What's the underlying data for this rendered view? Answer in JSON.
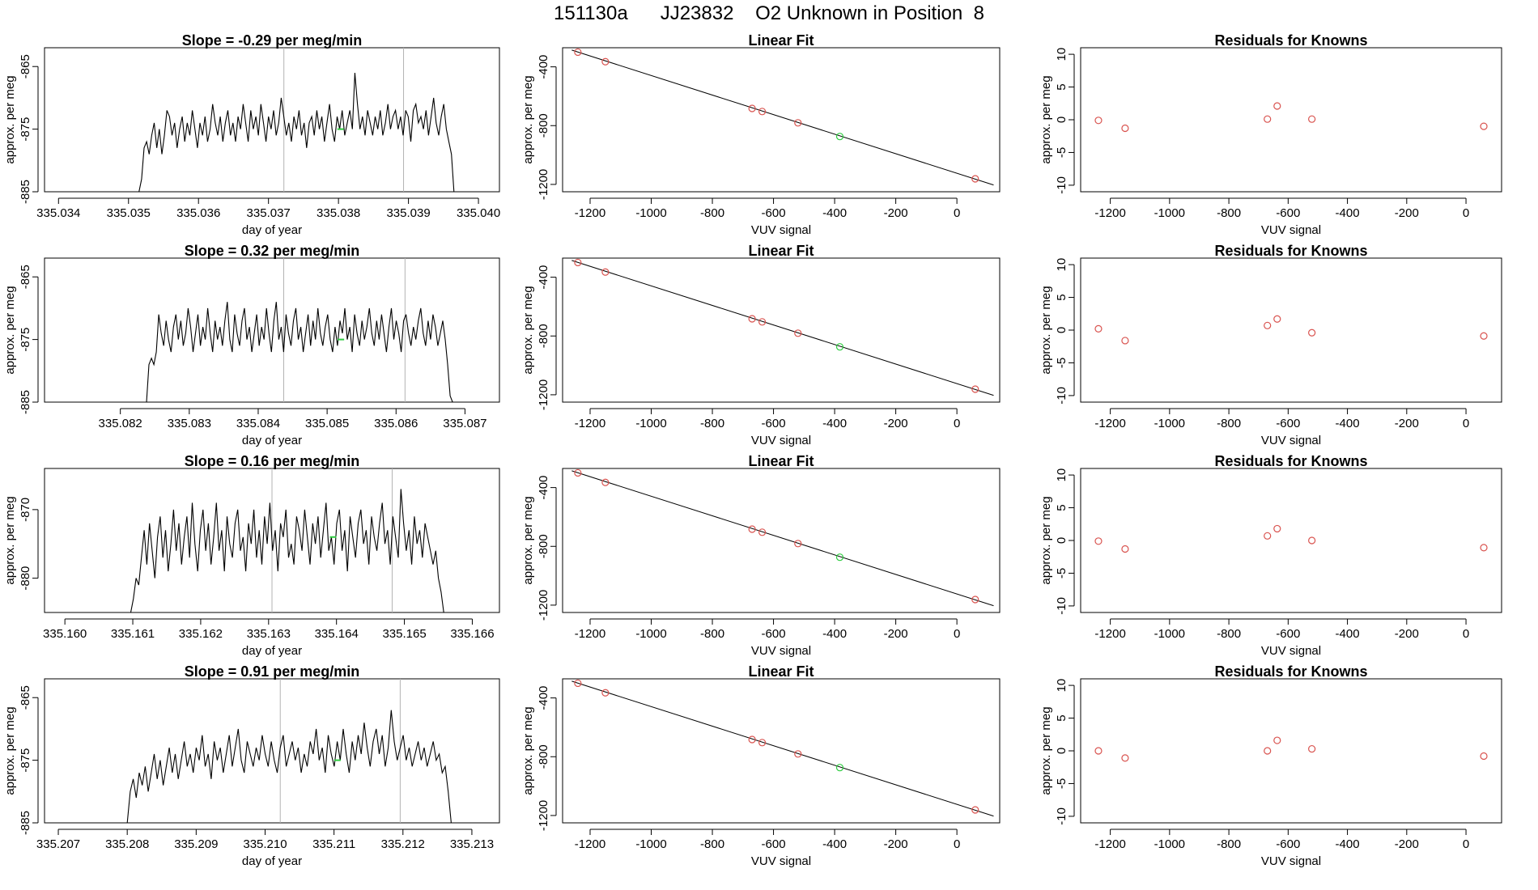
{
  "title": "151130a      JJ23832    O2 Unknown in Position  8",
  "colors": {
    "line": "#000000",
    "known": "#d9534f",
    "unknown": "#2ecc40",
    "marker": "#b3b3b3"
  },
  "chart_data": [
    {
      "type": "line",
      "title": "Slope =  -0.29  per meg/min",
      "xlabel": "day of year",
      "ylabel": "approx. per meg",
      "xlim": [
        335.0338,
        335.0403
      ],
      "ylim": [
        -885,
        -862
      ],
      "xticks": [
        "335.034",
        "335.035",
        "335.036",
        "335.037",
        "335.038",
        "335.039",
        "335.040"
      ],
      "yticks": [
        "-865",
        "-875",
        "-885"
      ],
      "vlines": [
        335.03722,
        335.03893
      ],
      "x_start": 335.03515,
      "x_end": 335.03965,
      "values": [
        -885,
        -883,
        -878,
        -877,
        -879,
        -876,
        -874,
        -878,
        -875,
        -879,
        -876,
        -872,
        -873,
        -876,
        -874,
        -878,
        -875,
        -873,
        -877,
        -874,
        -876,
        -872,
        -875,
        -878,
        -874,
        -876,
        -873,
        -877,
        -875,
        -871,
        -874,
        -876,
        -873,
        -877,
        -874,
        -872,
        -876,
        -874,
        -877,
        -873,
        -875,
        -871,
        -874,
        -877,
        -872,
        -875,
        -873,
        -876,
        -871,
        -874,
        -877,
        -873,
        -875,
        -872,
        -876,
        -874,
        -870,
        -873,
        -876,
        -874,
        -877,
        -873,
        -875,
        -872,
        -876,
        -874,
        -878,
        -874,
        -873,
        -876,
        -872,
        -875,
        -873,
        -877,
        -874,
        -871,
        -875,
        -877,
        -873,
        -875,
        -872,
        -876,
        -874,
        -872,
        -875,
        -866,
        -871,
        -875,
        -873,
        -876,
        -872,
        -874,
        -876,
        -873,
        -875,
        -872,
        -876,
        -874,
        -871,
        -875,
        -873,
        -872,
        -875,
        -873,
        -876,
        -872,
        -873,
        -877,
        -872,
        -871,
        -874,
        -873,
        -875,
        -872,
        -876,
        -873,
        -870,
        -874,
        -876,
        -873,
        -871,
        -875,
        -877,
        -879,
        -885
      ],
      "unknown_point": [
        335.03803,
        -875
      ]
    },
    {
      "type": "scatter",
      "title": "Linear Fit",
      "xlabel": "VUV signal",
      "ylabel": "approx. per meg",
      "xlim": [
        -1290,
        140
      ],
      "ylim": [
        -1250,
        -270
      ],
      "xticks": [
        -1200,
        -1000,
        -800,
        -600,
        -400,
        -200,
        0
      ],
      "yticks": [
        -400,
        -800,
        -1200
      ],
      "fit_line": [
        [
          -1260,
          -286
        ],
        [
          120,
          -1204
        ]
      ],
      "known_points": [
        [
          -1240,
          -300
        ],
        [
          -1150,
          -365
        ],
        [
          -670,
          -683
        ],
        [
          -637,
          -704
        ],
        [
          -520,
          -781
        ],
        [
          60,
          -1162
        ]
      ],
      "unknown_point": [
        -383,
        -874
      ]
    },
    {
      "type": "scatter",
      "title": "Residuals for Knowns",
      "xlabel": "VUV signal",
      "ylabel": "approx. per meg",
      "xlim": [
        -1300,
        120
      ],
      "ylim": [
        -11,
        11
      ],
      "xticks": [
        -1200,
        -1000,
        -800,
        -600,
        -400,
        -200,
        0
      ],
      "yticks": [
        10,
        5,
        0,
        -5,
        -10
      ],
      "points": [
        [
          -1240,
          -0.1
        ],
        [
          -1150,
          -1.3
        ],
        [
          -670,
          0.1
        ],
        [
          -637,
          2.1
        ],
        [
          -520,
          0.1
        ],
        [
          60,
          -1.0
        ]
      ]
    },
    {
      "type": "line",
      "title": "Slope =  0.32  per meg/min",
      "xlabel": "day of year",
      "ylabel": "approx. per meg",
      "xlim": [
        335.0809,
        335.0875
      ],
      "ylim": [
        -885,
        -862
      ],
      "xticks": [
        "335.082",
        "335.083",
        "335.084",
        "335.085",
        "335.086",
        "335.087"
      ],
      "yticks": [
        "-865",
        "-875",
        "-885"
      ],
      "vlines": [
        335.08437,
        335.08613
      ],
      "x_start": 335.08238,
      "x_end": 335.08682,
      "values": [
        -885,
        -879,
        -878,
        -879,
        -877,
        -871,
        -874,
        -876,
        -872,
        -875,
        -877,
        -873,
        -871,
        -875,
        -872,
        -876,
        -874,
        -870,
        -873,
        -877,
        -874,
        -871,
        -876,
        -873,
        -875,
        -870,
        -874,
        -877,
        -872,
        -875,
        -873,
        -876,
        -872,
        -869,
        -875,
        -877,
        -871,
        -874,
        -876,
        -872,
        -870,
        -875,
        -873,
        -877,
        -874,
        -871,
        -876,
        -873,
        -875,
        -870,
        -874,
        -877,
        -872,
        -869,
        -875,
        -873,
        -877,
        -871,
        -874,
        -876,
        -872,
        -870,
        -875,
        -873,
        -877,
        -874,
        -871,
        -876,
        -872,
        -875,
        -870,
        -874,
        -876,
        -873,
        -871,
        -875,
        -877,
        -873,
        -876,
        -872,
        -874,
        -870,
        -875,
        -873,
        -877,
        -871,
        -874,
        -876,
        -872,
        -875,
        -873,
        -870,
        -874,
        -876,
        -872,
        -875,
        -871,
        -874,
        -877,
        -873,
        -870,
        -875,
        -872,
        -874,
        -877,
        -872,
        -871,
        -874,
        -876,
        -873,
        -875,
        -872,
        -870,
        -874,
        -876,
        -872,
        -875,
        -871,
        -873,
        -876,
        -874,
        -872,
        -875,
        -879,
        -884,
        -885
      ],
      "unknown_point": [
        335.0852,
        -875
      ]
    },
    {
      "type": "scatter",
      "title": "Linear Fit",
      "xlabel": "VUV signal",
      "ylabel": "approx. per meg",
      "xlim": [
        -1290,
        140
      ],
      "ylim": [
        -1250,
        -270
      ],
      "xticks": [
        -1200,
        -1000,
        -800,
        -600,
        -400,
        -200,
        0
      ],
      "yticks": [
        -400,
        -800,
        -1200
      ],
      "fit_line": [
        [
          -1260,
          -286
        ],
        [
          120,
          -1204
        ]
      ],
      "known_points": [
        [
          -1240,
          -300
        ],
        [
          -1150,
          -365
        ],
        [
          -670,
          -683
        ],
        [
          -637,
          -704
        ],
        [
          -520,
          -781
        ],
        [
          60,
          -1162
        ]
      ],
      "unknown_point": [
        -383,
        -874
      ]
    },
    {
      "type": "scatter",
      "title": "Residuals for Knowns",
      "xlabel": "VUV signal",
      "ylabel": "approx. per meg",
      "xlim": [
        -1300,
        120
      ],
      "ylim": [
        -11,
        11
      ],
      "xticks": [
        -1200,
        -1000,
        -800,
        -600,
        -400,
        -200,
        0
      ],
      "yticks": [
        10,
        5,
        0,
        -5,
        -10
      ],
      "points": [
        [
          -1240,
          0.2
        ],
        [
          -1150,
          -1.6
        ],
        [
          -670,
          0.7
        ],
        [
          -637,
          1.7
        ],
        [
          -520,
          -0.4
        ],
        [
          60,
          -0.9
        ]
      ]
    },
    {
      "type": "line",
      "title": "Slope =  0.16  per meg/min",
      "xlabel": "day of year",
      "ylabel": "approx. per meg",
      "xlim": [
        335.1597,
        335.1664
      ],
      "ylim": [
        -885,
        -864
      ],
      "xticks": [
        "335.160",
        "335.161",
        "335.162",
        "335.163",
        "335.164",
        "335.165",
        "335.166"
      ],
      "yticks": [
        "-870",
        "-880"
      ],
      "vlines": [
        335.16305,
        335.16482
      ],
      "x_start": 335.16097,
      "x_end": 335.16558,
      "values": [
        -885,
        -883,
        -880,
        -881,
        -877,
        -873,
        -878,
        -872,
        -876,
        -880,
        -874,
        -871,
        -877,
        -873,
        -879,
        -875,
        -870,
        -876,
        -872,
        -878,
        -874,
        -871,
        -877,
        -869,
        -875,
        -879,
        -873,
        -870,
        -876,
        -872,
        -878,
        -874,
        -869,
        -876,
        -873,
        -879,
        -871,
        -875,
        -877,
        -872,
        -870,
        -876,
        -874,
        -879,
        -872,
        -875,
        -870,
        -877,
        -873,
        -878,
        -871,
        -875,
        -869,
        -876,
        -873,
        -879,
        -872,
        -874,
        -870,
        -877,
        -875,
        -878,
        -871,
        -873,
        -876,
        -870,
        -874,
        -878,
        -872,
        -875,
        -871,
        -877,
        -873,
        -869,
        -876,
        -874,
        -878,
        -872,
        -870,
        -876,
        -873,
        -879,
        -871,
        -874,
        -877,
        -872,
        -870,
        -875,
        -873,
        -878,
        -871,
        -874,
        -876,
        -872,
        -869,
        -875,
        -873,
        -878,
        -871,
        -874,
        -877,
        -867,
        -872,
        -876,
        -873,
        -878,
        -871,
        -875,
        -873,
        -877,
        -872,
        -874,
        -876,
        -878,
        -876,
        -880,
        -882,
        -885
      ],
      "unknown_point": [
        335.16395,
        -874
      ]
    },
    {
      "type": "scatter",
      "title": "Linear Fit",
      "xlabel": "VUV signal",
      "ylabel": "approx. per meg",
      "xlim": [
        -1290,
        140
      ],
      "ylim": [
        -1250,
        -270
      ],
      "xticks": [
        -1200,
        -1000,
        -800,
        -600,
        -400,
        -200,
        0
      ],
      "yticks": [
        -400,
        -800,
        -1200
      ],
      "fit_line": [
        [
          -1260,
          -286
        ],
        [
          120,
          -1204
        ]
      ],
      "known_points": [
        [
          -1240,
          -300
        ],
        [
          -1150,
          -365
        ],
        [
          -670,
          -683
        ],
        [
          -637,
          -704
        ],
        [
          -520,
          -781
        ],
        [
          60,
          -1162
        ]
      ],
      "unknown_point": [
        -383,
        -874
      ]
    },
    {
      "type": "scatter",
      "title": "Residuals for Knowns",
      "xlabel": "VUV signal",
      "ylabel": "approx. per meg",
      "xlim": [
        -1300,
        120
      ],
      "ylim": [
        -11,
        11
      ],
      "xticks": [
        -1200,
        -1000,
        -800,
        -600,
        -400,
        -200,
        0
      ],
      "yticks": [
        10,
        5,
        0,
        -5,
        -10
      ],
      "points": [
        [
          -1240,
          -0.1
        ],
        [
          -1150,
          -1.3
        ],
        [
          -670,
          0.7
        ],
        [
          -637,
          1.8
        ],
        [
          -520,
          0.0
        ],
        [
          60,
          -1.1
        ]
      ]
    },
    {
      "type": "line",
      "title": "Slope =  0.91  per meg/min",
      "xlabel": "day of year",
      "ylabel": "approx. per meg",
      "xlim": [
        335.2068,
        335.2134
      ],
      "ylim": [
        -885,
        -862
      ],
      "xticks": [
        "335.207",
        "335.208",
        "335.209",
        "335.210",
        "335.211",
        "335.212",
        "335.213"
      ],
      "yticks": [
        "-865",
        "-875",
        "-885"
      ],
      "vlines": [
        335.21022,
        335.21196
      ],
      "x_start": 335.208,
      "x_end": 335.2127,
      "values": [
        -885,
        -880,
        -878,
        -881,
        -877,
        -879,
        -876,
        -880,
        -877,
        -874,
        -878,
        -875,
        -879,
        -876,
        -873,
        -877,
        -874,
        -878,
        -875,
        -872,
        -876,
        -874,
        -877,
        -873,
        -875,
        -871,
        -876,
        -874,
        -878,
        -872,
        -875,
        -873,
        -877,
        -874,
        -871,
        -876,
        -873,
        -870,
        -875,
        -877,
        -872,
        -874,
        -876,
        -873,
        -875,
        -871,
        -874,
        -876,
        -872,
        -875,
        -877,
        -873,
        -871,
        -876,
        -874,
        -872,
        -875,
        -873,
        -877,
        -874,
        -876,
        -872,
        -874,
        -870,
        -875,
        -873,
        -877,
        -871,
        -874,
        -876,
        -872,
        -875,
        -870,
        -874,
        -877,
        -872,
        -875,
        -871,
        -874,
        -869,
        -873,
        -876,
        -872,
        -870,
        -874,
        -871,
        -876,
        -873,
        -867,
        -872,
        -875,
        -873,
        -871,
        -875,
        -873,
        -876,
        -874,
        -872,
        -875,
        -873,
        -876,
        -874,
        -872,
        -875,
        -874,
        -877,
        -876,
        -880,
        -885
      ],
      "unknown_point": [
        335.21105,
        -875
      ]
    },
    {
      "type": "scatter",
      "title": "Linear Fit",
      "xlabel": "VUV signal",
      "ylabel": "approx. per meg",
      "xlim": [
        -1290,
        140
      ],
      "ylim": [
        -1250,
        -270
      ],
      "xticks": [
        -1200,
        -1000,
        -800,
        -600,
        -400,
        -200,
        0
      ],
      "yticks": [
        -400,
        -800,
        -1200
      ],
      "fit_line": [
        [
          -1260,
          -286
        ],
        [
          120,
          -1204
        ]
      ],
      "known_points": [
        [
          -1240,
          -300
        ],
        [
          -1150,
          -365
        ],
        [
          -670,
          -683
        ],
        [
          -637,
          -704
        ],
        [
          -520,
          -781
        ],
        [
          60,
          -1162
        ]
      ],
      "unknown_point": [
        -383,
        -874
      ]
    },
    {
      "type": "scatter",
      "title": "Residuals for Knowns",
      "xlabel": "VUV signal",
      "ylabel": "approx. per meg",
      "xlim": [
        -1300,
        120
      ],
      "ylim": [
        -11,
        11
      ],
      "xticks": [
        -1200,
        -1000,
        -800,
        -600,
        -400,
        -200,
        0
      ],
      "yticks": [
        10,
        5,
        0,
        -5,
        -10
      ],
      "points": [
        [
          -1240,
          0.0
        ],
        [
          -1150,
          -1.1
        ],
        [
          -670,
          0.0
        ],
        [
          -637,
          1.6
        ],
        [
          -520,
          0.3
        ],
        [
          60,
          -0.8
        ]
      ]
    }
  ]
}
